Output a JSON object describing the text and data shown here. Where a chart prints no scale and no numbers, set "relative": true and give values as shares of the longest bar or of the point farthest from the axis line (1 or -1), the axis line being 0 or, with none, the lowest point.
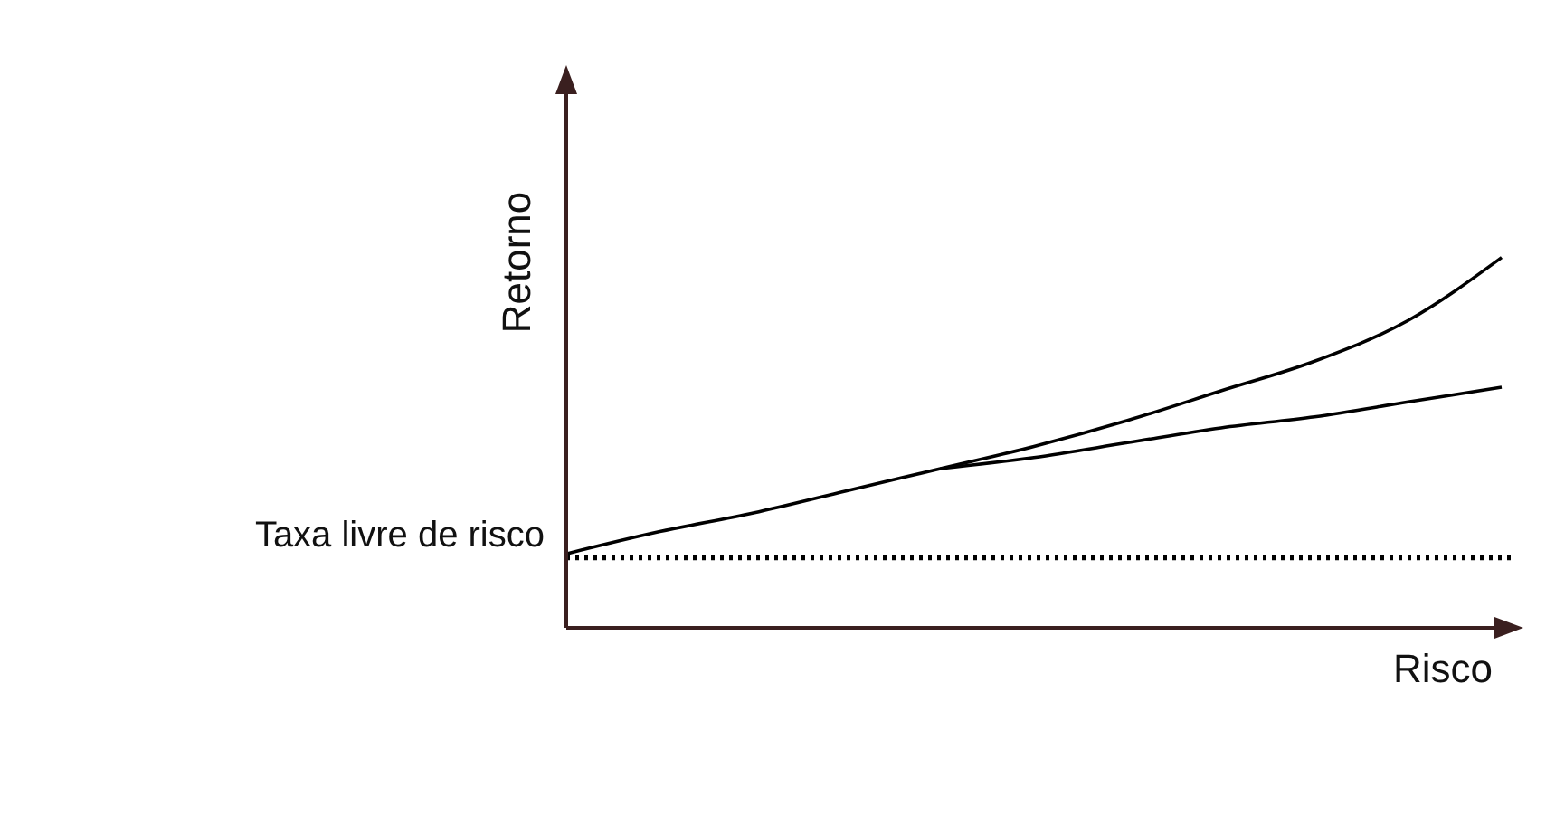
{
  "chart_data": {
    "type": "line",
    "relative": true,
    "xlabel": "Risco",
    "ylabel": "Retorno",
    "categories": [
      null,
      null,
      null,
      null,
      null,
      null,
      null,
      null,
      null,
      null,
      null
    ],
    "series": [
      {
        "color": "#000000",
        "values": [
          0.2,
          0.26,
          0.31,
          0.37,
          0.43,
          0.49,
          0.56,
          0.64,
          0.72,
          0.83,
          1
        ]
      },
      {
        "color": "#000000",
        "values": [
          null,
          null,
          null,
          null,
          0.43,
          0.46,
          0.5,
          0.54,
          0.57,
          0.61,
          0.65
        ]
      }
    ],
    "ref_lines": [
      {
        "axis": "y",
        "value": 0.19,
        "label": "Taxa livre de risco",
        "color": "#000000",
        "line_style": "dotted"
      }
    ],
    "grid": false,
    "legend": false,
    "marker": "none",
    "line_style": "solid"
  }
}
